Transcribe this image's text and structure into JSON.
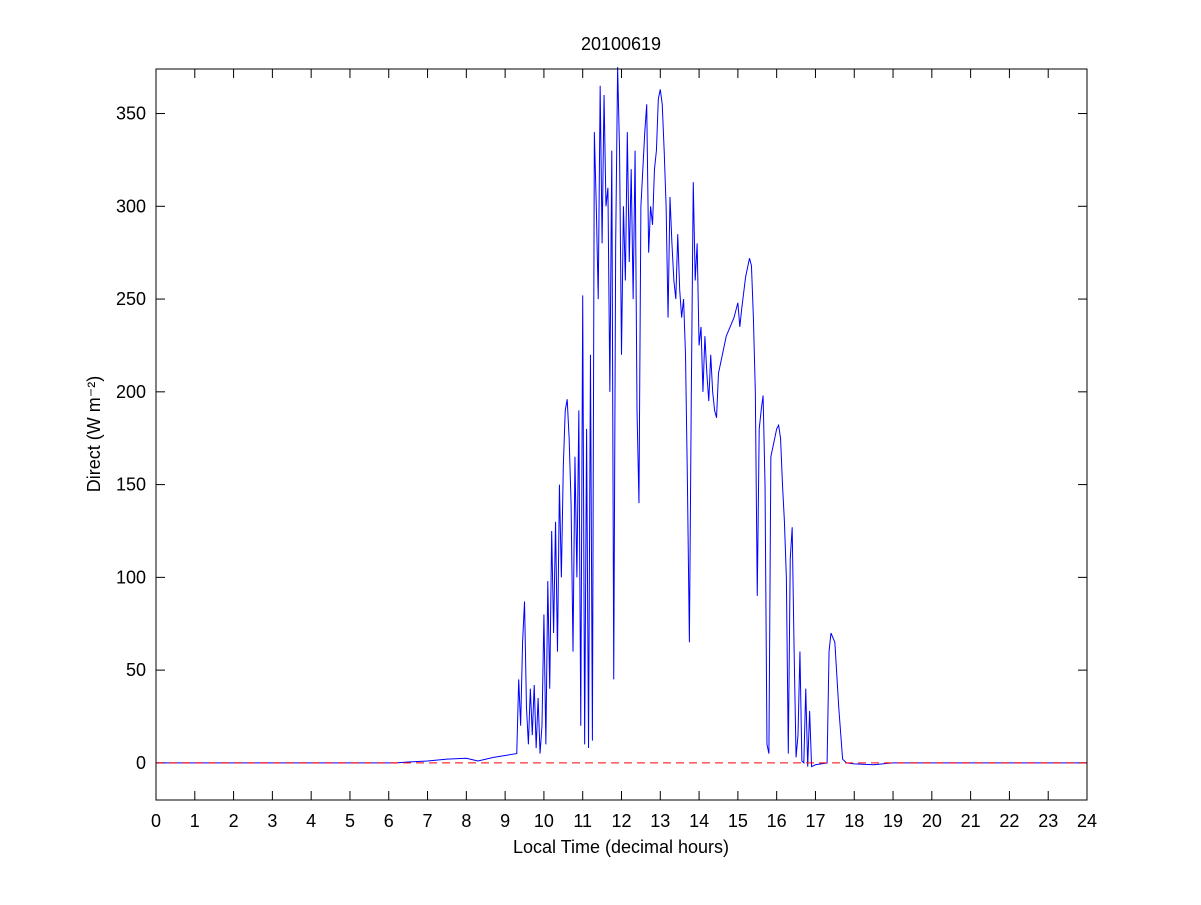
{
  "chart_data": {
    "type": "line",
    "title": "20100619",
    "xlabel": "Local Time (decimal hours)",
    "ylabel": "Direct (W m⁻²)",
    "xlim": [
      0,
      24
    ],
    "ylim": [
      -20,
      374
    ],
    "xticks": [
      0,
      1,
      2,
      3,
      4,
      5,
      6,
      7,
      8,
      9,
      10,
      11,
      12,
      13,
      14,
      15,
      16,
      17,
      18,
      19,
      20,
      21,
      22,
      23,
      24
    ],
    "yticks": [
      0,
      50,
      100,
      150,
      200,
      250,
      300,
      350
    ],
    "reference_line": {
      "value": 0,
      "color": "#ff0000",
      "dash": true
    },
    "series": [
      {
        "color": "#0000ff",
        "x": [
          0,
          6.2,
          6.5,
          7,
          7.5,
          8,
          8.3,
          8.7,
          9.0,
          9.3,
          9.35,
          9.4,
          9.45,
          9.5,
          9.55,
          9.6,
          9.65,
          9.7,
          9.75,
          9.8,
          9.85,
          9.9,
          9.95,
          10.0,
          10.05,
          10.1,
          10.15,
          10.2,
          10.25,
          10.3,
          10.35,
          10.4,
          10.45,
          10.5,
          10.55,
          10.6,
          10.65,
          10.7,
          10.75,
          10.8,
          10.85,
          10.9,
          10.95,
          11.0,
          11.05,
          11.1,
          11.15,
          11.2,
          11.25,
          11.3,
          11.35,
          11.4,
          11.45,
          11.5,
          11.55,
          11.6,
          11.65,
          11.7,
          11.75,
          11.8,
          11.85,
          11.9,
          11.95,
          12.0,
          12.05,
          12.1,
          12.15,
          12.2,
          12.25,
          12.3,
          12.35,
          12.4,
          12.45,
          12.5,
          12.55,
          12.6,
          12.65,
          12.7,
          12.75,
          12.8,
          12.85,
          12.9,
          12.95,
          13.0,
          13.05,
          13.1,
          13.15,
          13.2,
          13.25,
          13.3,
          13.35,
          13.4,
          13.45,
          13.5,
          13.55,
          13.6,
          13.65,
          13.7,
          13.75,
          13.8,
          13.85,
          13.9,
          13.95,
          14.0,
          14.05,
          14.1,
          14.15,
          14.2,
          14.25,
          14.3,
          14.35,
          14.4,
          14.45,
          14.5,
          14.6,
          14.7,
          14.8,
          14.9,
          15.0,
          15.05,
          15.1,
          15.2,
          15.3,
          15.35,
          15.4,
          15.45,
          15.5,
          15.55,
          15.6,
          15.65,
          15.7,
          15.75,
          15.8,
          15.85,
          15.9,
          16.0,
          16.05,
          16.1,
          16.15,
          16.2,
          16.25,
          16.3,
          16.35,
          16.4,
          16.45,
          16.5,
          16.55,
          16.6,
          16.65,
          16.7,
          16.75,
          16.8,
          16.85,
          16.9,
          17.0,
          17.3,
          17.35,
          17.4,
          17.5,
          17.6,
          17.7,
          17.8,
          18.0,
          18.5,
          19.0,
          24
        ],
        "values": [
          0,
          0,
          0.5,
          1,
          2,
          2.5,
          1,
          3,
          4,
          5,
          45,
          20,
          65,
          87,
          30,
          10,
          40,
          15,
          42,
          8,
          35,
          5,
          20,
          80,
          10,
          98,
          40,
          125,
          70,
          130,
          60,
          150,
          100,
          160,
          190,
          196,
          175,
          140,
          60,
          165,
          100,
          190,
          20,
          252,
          10,
          180,
          8,
          220,
          12,
          340,
          300,
          250,
          365,
          280,
          360,
          300,
          310,
          200,
          330,
          45,
          280,
          375,
          330,
          220,
          300,
          260,
          340,
          270,
          320,
          250,
          330,
          190,
          140,
          300,
          320,
          340,
          355,
          275,
          300,
          290,
          320,
          330,
          358,
          363,
          355,
          330,
          300,
          240,
          305,
          280,
          260,
          250,
          285,
          255,
          240,
          250,
          220,
          150,
          65,
          200,
          313,
          260,
          280,
          225,
          235,
          200,
          230,
          210,
          195,
          220,
          200,
          190,
          186,
          210,
          220,
          230,
          235,
          240,
          248,
          235,
          245,
          262,
          272,
          268,
          240,
          200,
          90,
          180,
          190,
          198,
          150,
          10,
          5,
          165,
          170,
          180,
          182,
          175,
          150,
          130,
          100,
          5,
          110,
          127,
          60,
          3,
          15,
          60,
          1,
          0,
          40,
          -2,
          28,
          -2,
          -1,
          0,
          60,
          70,
          65,
          30,
          2,
          0,
          -0.5,
          -1,
          0,
          0
        ]
      }
    ]
  }
}
